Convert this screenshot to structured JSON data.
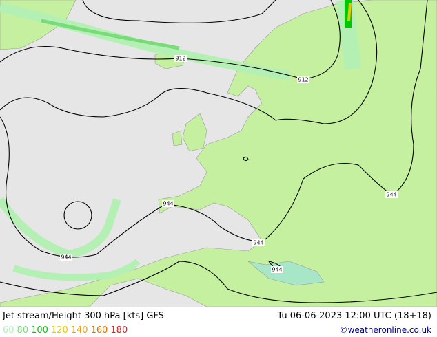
{
  "map": {
    "title": "Jet stream/Height 300 hPa [kts] GFS",
    "valid_time": "Tu 06-06-2023 12:00 UTC (18+18)",
    "credit": "©weatheronline.co.uk",
    "legend": [
      {
        "value": 60,
        "color": "#b4f0b4"
      },
      {
        "value": 80,
        "color": "#78dc78"
      },
      {
        "value": 100,
        "color": "#00c800"
      },
      {
        "value": 120,
        "color": "#e6c800"
      },
      {
        "value": 140,
        "color": "#f0a000"
      },
      {
        "value": 160,
        "color": "#e07000"
      },
      {
        "value": 180,
        "color": "#d02828"
      }
    ],
    "contour_labels": [
      912,
      912,
      944,
      944,
      944,
      944,
      944
    ]
  }
}
